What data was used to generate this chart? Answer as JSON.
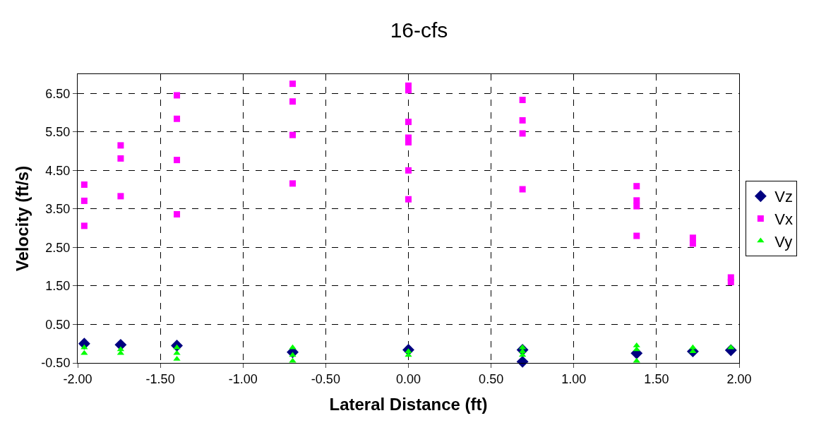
{
  "chart_data": {
    "type": "scatter",
    "title": "16-cfs",
    "xlabel": "Lateral Distance (ft)",
    "ylabel": "Velocity (ft/s)",
    "xlim": [
      -2.0,
      2.0
    ],
    "xticks": [
      {
        "value": -2.0,
        "label": "-2.00"
      },
      {
        "value": -1.5,
        "label": "-1.50"
      },
      {
        "value": -1.0,
        "label": "-1.00"
      },
      {
        "value": -0.5,
        "label": "-0.50"
      },
      {
        "value": 0.0,
        "label": "0.00"
      },
      {
        "value": 0.5,
        "label": "0.50"
      },
      {
        "value": 1.0,
        "label": "1.00"
      },
      {
        "value": 1.5,
        "label": "1.50"
      },
      {
        "value": 2.0,
        "label": "2.00"
      }
    ],
    "ylim": [
      -0.5,
      7.0
    ],
    "yticks": [
      {
        "value": -0.5,
        "label": "-0.50"
      },
      {
        "value": 0.5,
        "label": "0.50"
      },
      {
        "value": 1.5,
        "label": "1.50"
      },
      {
        "value": 2.5,
        "label": "2.50"
      },
      {
        "value": 3.5,
        "label": "3.50"
      },
      {
        "value": 4.5,
        "label": "4.50"
      },
      {
        "value": 5.5,
        "label": "5.50"
      },
      {
        "value": 6.5,
        "label": "6.50"
      }
    ],
    "grid": true,
    "legend": "right",
    "series": [
      {
        "name": "Vz",
        "color": "#000080",
        "marker": "diamond",
        "x": [
          -1.96,
          -1.74,
          -1.4,
          -0.7,
          0.0,
          0.69,
          0.69,
          1.38,
          1.72,
          1.95
        ],
        "values": [
          0.0,
          -0.03,
          -0.05,
          -0.22,
          -0.16,
          -0.47,
          -0.16,
          -0.25,
          -0.2,
          -0.17
        ]
      },
      {
        "name": "Vx",
        "color": "#ff00ff",
        "marker": "square",
        "x": [
          -1.96,
          -1.96,
          -1.96,
          -1.74,
          -1.74,
          -1.74,
          -1.4,
          -1.4,
          -1.4,
          -1.4,
          -0.7,
          -0.7,
          -0.7,
          -0.7,
          0.0,
          0.0,
          0.0,
          0.0,
          0.0,
          0.0,
          0.0,
          0.69,
          0.69,
          0.69,
          0.69,
          1.38,
          1.38,
          1.38,
          1.38,
          1.72,
          1.72,
          1.95,
          1.95
        ],
        "values": [
          4.13,
          3.71,
          3.06,
          5.15,
          4.81,
          3.83,
          6.45,
          5.84,
          4.77,
          3.36,
          6.75,
          6.29,
          5.42,
          4.16,
          6.7,
          6.58,
          5.76,
          5.35,
          5.23,
          4.5,
          3.75,
          6.33,
          5.8,
          5.46,
          4.01,
          4.09,
          3.72,
          3.57,
          2.8,
          2.75,
          2.6,
          1.72,
          1.6
        ]
      },
      {
        "name": "Vy",
        "color": "#00ff00",
        "marker": "triangle",
        "x": [
          -1.96,
          -1.96,
          -1.74,
          -1.74,
          -1.4,
          -1.4,
          -1.4,
          -0.7,
          -0.7,
          -0.7,
          0.0,
          0.0,
          0.69,
          0.69,
          0.69,
          1.38,
          1.38,
          1.38,
          1.72,
          1.72,
          1.95
        ],
        "values": [
          -0.1,
          -0.25,
          -0.15,
          -0.25,
          -0.1,
          -0.25,
          -0.4,
          -0.1,
          -0.3,
          -0.45,
          -0.2,
          -0.3,
          -0.1,
          -0.2,
          -0.3,
          -0.05,
          -0.15,
          -0.45,
          -0.1,
          -0.2,
          -0.1
        ]
      }
    ]
  }
}
